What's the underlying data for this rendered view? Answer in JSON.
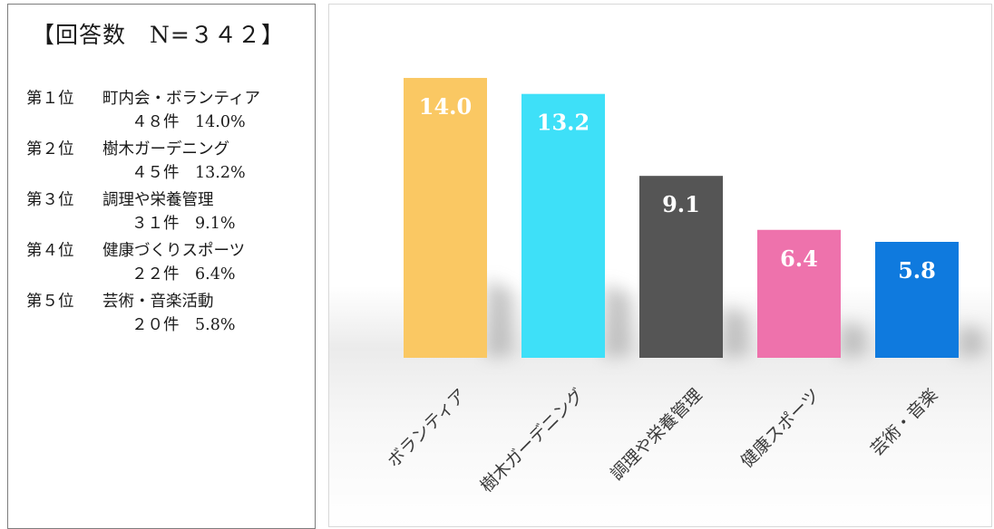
{
  "summary": {
    "title": "【回答数　N=３４２】",
    "rankings": [
      {
        "position": "第１位",
        "name": "町内会・ボランティア",
        "detail": "４８件　14.0%"
      },
      {
        "position": "第２位",
        "name": "樹木ガーデニング",
        "detail": "４５件　13.2%"
      },
      {
        "position": "第３位",
        "name": "調理や栄養管理",
        "detail": "３１件　9.1%"
      },
      {
        "position": "第４位",
        "name": "健康づくりスポーツ",
        "detail": "２２件　6.4%"
      },
      {
        "position": "第５位",
        "name": "芸術・音楽活動",
        "detail": "２０件　5.8%"
      }
    ]
  },
  "chart_data": {
    "type": "bar",
    "categories": [
      "ボランティア",
      "樹木ガーデニング",
      "調理や栄養管理",
      "健康スポーツ",
      "芸術・音楽"
    ],
    "values": [
      14.0,
      13.2,
      9.1,
      6.4,
      5.8
    ],
    "value_labels": [
      "14.0",
      "13.2",
      "9.1",
      "6.4",
      "5.8"
    ],
    "colors": [
      "#fac863",
      "#3ee0f8",
      "#555555",
      "#ee72ac",
      "#0f7ade"
    ],
    "ylim": [
      0,
      14.5
    ],
    "grid": false,
    "legend": "none",
    "title": "",
    "xlabel": "",
    "ylabel": ""
  }
}
